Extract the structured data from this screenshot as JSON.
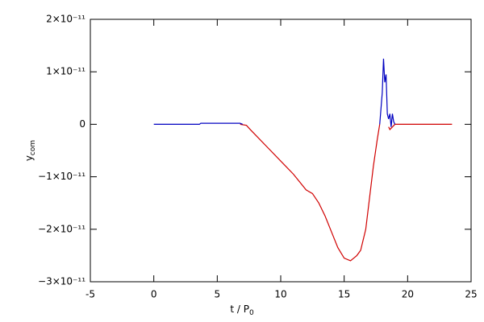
{
  "chart_data": {
    "type": "line",
    "xlabel": "t / P",
    "xlabel_sub": "0",
    "ylabel": "y",
    "ylabel_sub": "com",
    "xlim": [
      -5,
      25
    ],
    "xticks": [
      -5,
      0,
      5,
      10,
      15,
      20,
      25
    ],
    "ylim": [
      -3e-11,
      2e-11
    ],
    "yticks": [
      {
        "value": -3e-11,
        "label": "−3×10⁻¹¹"
      },
      {
        "value": -2e-11,
        "label": "−2×10⁻¹¹"
      },
      {
        "value": -1e-11,
        "label": "−1×10⁻¹¹"
      },
      0,
      {
        "value": 1e-11,
        "label": "1×10⁻¹¹"
      },
      {
        "value": 2e-11,
        "label": "2×10⁻¹¹"
      }
    ],
    "series": [
      {
        "color": "#d00000",
        "x": [
          6.8,
          7.3,
          7.6,
          8,
          9,
          10,
          11,
          12,
          12.5,
          13,
          13.5,
          14,
          14.5,
          15,
          15.5,
          16,
          16.3,
          16.7,
          17,
          17.3,
          17.6,
          17.8,
          null,
          18.5,
          18.6,
          18.8,
          19,
          23.5
        ],
        "values": [
          0,
          -2e-13,
          -1e-12,
          -2e-12,
          -4.5e-12,
          -7e-12,
          -9.5e-12,
          -1.25e-11,
          -1.32e-11,
          -1.5e-11,
          -1.75e-11,
          -2.05e-11,
          -2.35e-11,
          -2.55e-11,
          -2.6e-11,
          -2.5e-11,
          -2.4e-11,
          -2e-11,
          -1.4e-11,
          -8e-12,
          -3e-12,
          0,
          null,
          -5e-13,
          -1e-12,
          -5e-13,
          0,
          0
        ]
      },
      {
        "color": "#0000c0",
        "x": [
          0,
          3.6,
          3.7,
          6.8,
          7.0,
          null,
          17.8,
          18,
          18.1,
          18.2,
          18.3,
          18.4,
          18.5,
          18.6,
          18.7,
          18.8,
          18.9,
          19
        ],
        "values": [
          0,
          0,
          2e-13,
          2e-13,
          0,
          null,
          0,
          6e-12,
          1.25e-11,
          8e-12,
          9.5e-12,
          2e-12,
          1e-12,
          2e-12,
          -5e-13,
          2e-12,
          5e-13,
          0
        ]
      }
    ]
  }
}
